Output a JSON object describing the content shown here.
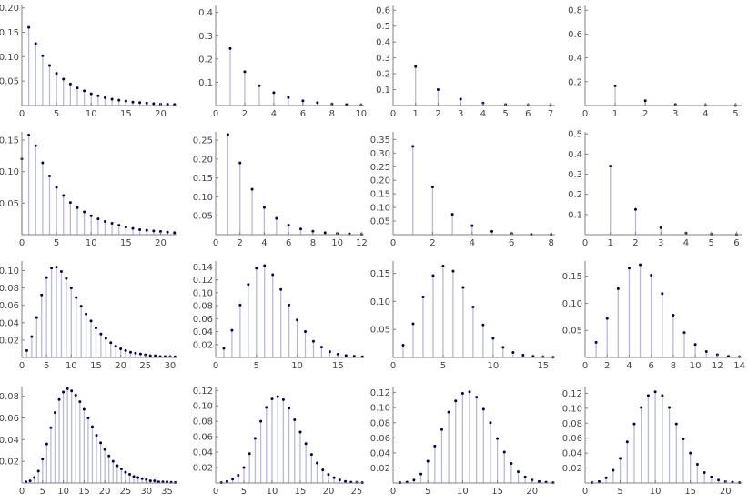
{
  "colors": {
    "stem": "#b8b8e0",
    "point": "#000050",
    "axis": "#808080",
    "tick_text": "#444444"
  },
  "chart_data": [
    {
      "type": "stem",
      "xlim": [
        0,
        22.3
      ],
      "ylim": [
        0,
        0.205
      ],
      "xticks": [
        0,
        5,
        10,
        15,
        20
      ],
      "yticks": [
        0.05,
        0.1,
        0.15,
        0.2
      ],
      "ytick_labels": [
        "0.05",
        "0.10",
        "0.15",
        "0.20"
      ],
      "x": [
        1,
        2,
        3,
        4,
        5,
        6,
        7,
        8,
        9,
        10,
        11,
        12,
        13,
        14,
        15,
        16,
        17,
        18,
        19,
        20,
        21,
        22
      ],
      "y": [
        0.16,
        0.127,
        0.102,
        0.082,
        0.066,
        0.054,
        0.044,
        0.036,
        0.03,
        0.024,
        0.02,
        0.016,
        0.013,
        0.011,
        0.009,
        0.007,
        0.006,
        0.005,
        0.004,
        0.003,
        0.0025,
        0.002
      ]
    },
    {
      "type": "stem",
      "xlim": [
        0,
        10.2
      ],
      "ylim": [
        0,
        0.43
      ],
      "xticks": [
        0,
        2,
        4,
        6,
        8,
        10
      ],
      "yticks": [
        0.1,
        0.2,
        0.3,
        0.4
      ],
      "ytick_labels": [
        "0.1",
        "0.2",
        "0.3",
        "0.4"
      ],
      "x": [
        1,
        2,
        3,
        4,
        5,
        6,
        7,
        8,
        9,
        10
      ],
      "y": [
        0.245,
        0.145,
        0.085,
        0.055,
        0.034,
        0.02,
        0.012,
        0.007,
        0.004,
        0.002
      ]
    },
    {
      "type": "stem",
      "xlim": [
        0,
        7.2
      ],
      "ylim": [
        0,
        0.63
      ],
      "xticks": [
        0,
        1,
        2,
        3,
        4,
        5,
        6,
        7
      ],
      "yticks": [
        0.1,
        0.2,
        0.3,
        0.4,
        0.5,
        0.6
      ],
      "ytick_labels": [
        "0.1",
        "0.2",
        "0.3",
        "0.4",
        "0.5",
        "0.6"
      ],
      "x": [
        1,
        2,
        3,
        4,
        5,
        6,
        7
      ],
      "y": [
        0.245,
        0.1,
        0.04,
        0.016,
        0.006,
        0.002,
        0.001
      ]
    },
    {
      "type": "stem",
      "xlim": [
        0,
        5.2
      ],
      "ylim": [
        0,
        0.84
      ],
      "xticks": [
        0,
        1,
        2,
        3,
        4,
        5
      ],
      "yticks": [
        0.2,
        0.4,
        0.6,
        0.8
      ],
      "ytick_labels": [
        "0.2",
        "0.4",
        "0.6",
        "0.8"
      ],
      "x": [
        1,
        2,
        3,
        4,
        5
      ],
      "y": [
        0.165,
        0.04,
        0.009,
        0.002,
        0.0005
      ]
    },
    {
      "type": "stem",
      "xlim": [
        0,
        22.3
      ],
      "ylim": [
        0,
        0.163
      ],
      "xticks": [
        0,
        5,
        10,
        15,
        20
      ],
      "yticks": [
        0.05,
        0.1,
        0.15
      ],
      "ytick_labels": [
        "0.05",
        "0.10",
        "0.15"
      ],
      "x": [
        0,
        1,
        2,
        3,
        4,
        5,
        6,
        7,
        8,
        9,
        10,
        11,
        12,
        13,
        14,
        15,
        16,
        17,
        18,
        19,
        20,
        21,
        22
      ],
      "y": [
        0.12,
        0.158,
        0.141,
        0.114,
        0.093,
        0.075,
        0.062,
        0.051,
        0.043,
        0.036,
        0.03,
        0.025,
        0.021,
        0.018,
        0.015,
        0.012,
        0.01,
        0.008,
        0.007,
        0.006,
        0.005,
        0.004,
        0.003
      ]
    },
    {
      "type": "stem",
      "xlim": [
        0,
        12.2
      ],
      "ylim": [
        0,
        0.272
      ],
      "xticks": [
        0,
        2,
        4,
        6,
        8,
        10,
        12
      ],
      "yticks": [
        0.05,
        0.1,
        0.15,
        0.2,
        0.25
      ],
      "ytick_labels": [
        "0.05",
        "0.10",
        "0.15",
        "0.20",
        "0.25"
      ],
      "x": [
        1,
        2,
        3,
        4,
        5,
        6,
        7,
        8,
        9,
        10,
        11,
        12
      ],
      "y": [
        0.265,
        0.19,
        0.12,
        0.072,
        0.043,
        0.025,
        0.015,
        0.009,
        0.005,
        0.003,
        0.002,
        0.001
      ]
    },
    {
      "type": "stem",
      "xlim": [
        0,
        8.2
      ],
      "ylim": [
        0,
        0.378
      ],
      "xticks": [
        0,
        2,
        4,
        6,
        8
      ],
      "yticks": [
        0.05,
        0.1,
        0.15,
        0.2,
        0.25,
        0.3,
        0.35
      ],
      "ytick_labels": [
        "0.05",
        "0.10",
        "0.15",
        "0.20",
        "0.25",
        "0.30",
        "0.35"
      ],
      "x": [
        1,
        2,
        3,
        4,
        5,
        6,
        7,
        8
      ],
      "y": [
        0.325,
        0.175,
        0.075,
        0.033,
        0.012,
        0.004,
        0.001,
        0.0003
      ]
    },
    {
      "type": "stem",
      "xlim": [
        0,
        6.2
      ],
      "ylim": [
        0,
        0.51
      ],
      "xticks": [
        0,
        1,
        2,
        3,
        4,
        5,
        6
      ],
      "yticks": [
        0.1,
        0.2,
        0.3,
        0.4,
        0.5
      ],
      "ytick_labels": [
        "0.1",
        "0.2",
        "0.3",
        "0.4",
        "0.5"
      ],
      "x": [
        1,
        2,
        3,
        4,
        5,
        6
      ],
      "y": [
        0.34,
        0.125,
        0.035,
        0.008,
        0.002,
        0.0005
      ]
    },
    {
      "type": "stem",
      "xlim": [
        0,
        31.3
      ],
      "ylim": [
        0,
        0.111
      ],
      "xticks": [
        0,
        5,
        10,
        15,
        20,
        25,
        30
      ],
      "yticks": [
        0.02,
        0.04,
        0.06,
        0.08,
        0.1
      ],
      "ytick_labels": [
        "0.02",
        "0.04",
        "0.06",
        "0.08",
        "0.10"
      ],
      "x": [
        1,
        2,
        3,
        4,
        5,
        6,
        7,
        8,
        9,
        10,
        11,
        12,
        13,
        14,
        15,
        16,
        17,
        18,
        19,
        20,
        21,
        22,
        23,
        24,
        25,
        26,
        27,
        28,
        29,
        30,
        31
      ],
      "y": [
        0.008,
        0.024,
        0.046,
        0.072,
        0.092,
        0.103,
        0.104,
        0.099,
        0.091,
        0.08,
        0.069,
        0.059,
        0.05,
        0.042,
        0.034,
        0.027,
        0.022,
        0.017,
        0.013,
        0.01,
        0.008,
        0.006,
        0.005,
        0.004,
        0.003,
        0.002,
        0.002,
        0.001,
        0.001,
        0.001,
        0.0008
      ]
    },
    {
      "type": "stem",
      "xlim": [
        0,
        18.2
      ],
      "ylim": [
        0,
        0.149
      ],
      "xticks": [
        0,
        5,
        10,
        15
      ],
      "yticks": [
        0.02,
        0.04,
        0.06,
        0.08,
        0.1,
        0.12,
        0.14
      ],
      "ytick_labels": [
        "0.02",
        "0.04",
        "0.06",
        "0.08",
        "0.10",
        "0.12",
        "0.14"
      ],
      "x": [
        1,
        2,
        3,
        4,
        5,
        6,
        7,
        8,
        9,
        10,
        11,
        12,
        13,
        14,
        15,
        16,
        17,
        18
      ],
      "y": [
        0.014,
        0.042,
        0.081,
        0.113,
        0.138,
        0.142,
        0.128,
        0.105,
        0.081,
        0.058,
        0.04,
        0.025,
        0.016,
        0.009,
        0.005,
        0.003,
        0.002,
        0.001
      ]
    },
    {
      "type": "stem",
      "xlim": [
        0,
        16.2
      ],
      "ylim": [
        0,
        0.172
      ],
      "xticks": [
        0,
        5,
        10,
        15
      ],
      "yticks": [
        0.05,
        0.1,
        0.15
      ],
      "ytick_labels": [
        "0.05",
        "0.10",
        "0.15"
      ],
      "x": [
        1,
        2,
        3,
        4,
        5,
        6,
        7,
        8,
        9,
        10,
        11,
        12,
        13,
        14,
        15,
        16
      ],
      "y": [
        0.022,
        0.06,
        0.108,
        0.146,
        0.163,
        0.154,
        0.125,
        0.09,
        0.058,
        0.034,
        0.018,
        0.009,
        0.004,
        0.002,
        0.001,
        0.0005
      ]
    },
    {
      "type": "stem",
      "xlim": [
        0,
        14.2
      ],
      "ylim": [
        0,
        0.178
      ],
      "xticks": [
        0,
        2,
        4,
        6,
        8,
        10,
        12,
        14
      ],
      "yticks": [
        0.05,
        0.1,
        0.15
      ],
      "ytick_labels": [
        "0.05",
        "0.10",
        "0.15"
      ],
      "x": [
        1,
        2,
        3,
        4,
        5,
        6,
        7,
        8,
        9,
        10,
        11,
        12,
        13,
        14
      ],
      "y": [
        0.028,
        0.072,
        0.127,
        0.165,
        0.171,
        0.152,
        0.118,
        0.078,
        0.046,
        0.024,
        0.011,
        0.005,
        0.002,
        0.001
      ]
    },
    {
      "type": "stem",
      "xlim": [
        0,
        37.3
      ],
      "ylim": [
        0,
        0.089
      ],
      "xticks": [
        0,
        5,
        10,
        15,
        20,
        25,
        30,
        35
      ],
      "yticks": [
        0.02,
        0.04,
        0.06,
        0.08
      ],
      "ytick_labels": [
        "0.02",
        "0.04",
        "0.06",
        "0.08"
      ],
      "x": [
        1,
        2,
        3,
        4,
        5,
        6,
        7,
        8,
        9,
        10,
        11,
        12,
        13,
        14,
        15,
        16,
        17,
        18,
        19,
        20,
        21,
        22,
        23,
        24,
        25,
        26,
        27,
        28,
        29,
        30,
        31,
        32,
        33,
        34,
        35,
        36,
        37
      ],
      "y": [
        0.001,
        0.002,
        0.005,
        0.011,
        0.022,
        0.036,
        0.051,
        0.065,
        0.077,
        0.084,
        0.087,
        0.085,
        0.081,
        0.075,
        0.068,
        0.06,
        0.052,
        0.044,
        0.037,
        0.031,
        0.025,
        0.02,
        0.016,
        0.013,
        0.01,
        0.008,
        0.006,
        0.005,
        0.004,
        0.003,
        0.002,
        0.002,
        0.001,
        0.001,
        0.001,
        0.0006,
        0.0004
      ]
    },
    {
      "type": "stem",
      "xlim": [
        0,
        26.3
      ],
      "ylim": [
        0,
        0.125
      ],
      "xticks": [
        0,
        5,
        10,
        15,
        20,
        25
      ],
      "yticks": [
        0.02,
        0.04,
        0.06,
        0.08,
        0.1,
        0.12
      ],
      "ytick_labels": [
        "0.02",
        "0.04",
        "0.06",
        "0.08",
        "0.10",
        "0.12"
      ],
      "x": [
        1,
        2,
        3,
        4,
        5,
        6,
        7,
        8,
        9,
        10,
        11,
        12,
        13,
        14,
        15,
        16,
        17,
        18,
        19,
        20,
        21,
        22,
        23,
        24,
        25,
        26
      ],
      "y": [
        0.0005,
        0.002,
        0.005,
        0.01,
        0.02,
        0.038,
        0.058,
        0.08,
        0.098,
        0.109,
        0.112,
        0.108,
        0.097,
        0.082,
        0.066,
        0.051,
        0.037,
        0.026,
        0.017,
        0.011,
        0.007,
        0.004,
        0.002,
        0.001,
        0.0008,
        0.0004
      ]
    },
    {
      "type": "stem",
      "xlim": [
        0,
        23.3
      ],
      "ylim": [
        0,
        0.128
      ],
      "xticks": [
        0,
        5,
        10,
        15,
        20
      ],
      "yticks": [
        0.02,
        0.04,
        0.06,
        0.08,
        0.1,
        0.12
      ],
      "ytick_labels": [
        "0.02",
        "0.04",
        "0.06",
        "0.08",
        "0.10",
        "0.12"
      ],
      "x": [
        1,
        2,
        3,
        4,
        5,
        6,
        7,
        8,
        9,
        10,
        11,
        12,
        13,
        14,
        15,
        16,
        17,
        18,
        19,
        20,
        21,
        22,
        23
      ],
      "y": [
        0.0005,
        0.001,
        0.004,
        0.012,
        0.029,
        0.049,
        0.071,
        0.094,
        0.109,
        0.119,
        0.121,
        0.114,
        0.098,
        0.08,
        0.059,
        0.041,
        0.026,
        0.015,
        0.008,
        0.004,
        0.002,
        0.001,
        0.0005
      ]
    },
    {
      "type": "stem",
      "xlim": [
        0,
        22.3
      ],
      "ylim": [
        0,
        0.129
      ],
      "xticks": [
        0,
        5,
        10,
        15,
        20
      ],
      "yticks": [
        0.02,
        0.04,
        0.06,
        0.08,
        0.1,
        0.12
      ],
      "ytick_labels": [
        "0.02",
        "0.04",
        "0.06",
        "0.08",
        "0.10",
        "0.12"
      ],
      "x": [
        1,
        2,
        3,
        4,
        5,
        6,
        7,
        8,
        9,
        10,
        11,
        12,
        13,
        14,
        15,
        16,
        17,
        18,
        19,
        20,
        21,
        22
      ],
      "y": [
        0.0005,
        0.002,
        0.007,
        0.017,
        0.033,
        0.055,
        0.079,
        0.101,
        0.117,
        0.122,
        0.117,
        0.101,
        0.079,
        0.059,
        0.04,
        0.025,
        0.014,
        0.008,
        0.004,
        0.002,
        0.001,
        0.0005
      ]
    }
  ]
}
